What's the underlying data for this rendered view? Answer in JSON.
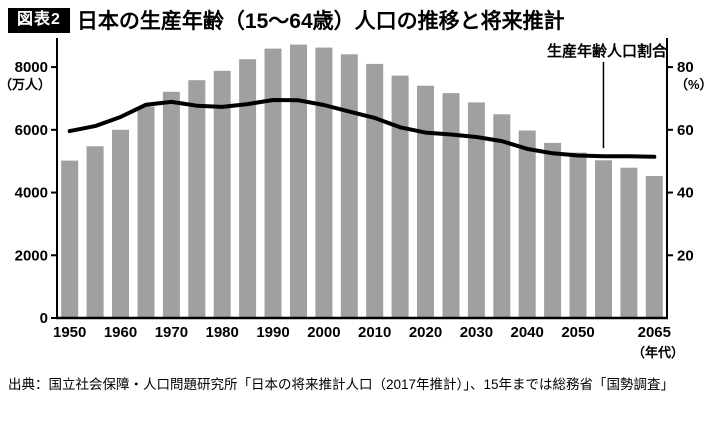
{
  "header": {
    "badge": "図表2",
    "title": "日本の生産年齢（15〜64歳）人口の推移と将来推計"
  },
  "chart_data": {
    "type": "bar+line",
    "title": "日本の生産年齢（15〜64歳）人口の推移と将来推計",
    "categories": [
      1950,
      1955,
      1960,
      1965,
      1970,
      1975,
      1980,
      1985,
      1990,
      1995,
      2000,
      2005,
      2010,
      2015,
      2020,
      2025,
      2030,
      2035,
      2040,
      2045,
      2050,
      2055,
      2060,
      2065
    ],
    "series": [
      {
        "name": "生産年齢人口",
        "type": "bar",
        "unit": "万人",
        "values": [
          5017,
          5473,
          6000,
          6744,
          7212,
          7581,
          7883,
          8251,
          8590,
          8716,
          8622,
          8409,
          8103,
          7728,
          7406,
          7170,
          6875,
          6494,
          5978,
          5584,
          5275,
          5028,
          4793,
          4529
        ]
      },
      {
        "name": "生産年齢人口割合",
        "type": "line",
        "unit": "%",
        "values": [
          59.6,
          61.2,
          64.1,
          68.0,
          68.9,
          67.7,
          67.3,
          68.2,
          69.5,
          69.4,
          67.9,
          65.8,
          63.8,
          60.8,
          59.1,
          58.5,
          57.7,
          56.4,
          53.9,
          52.5,
          51.8,
          51.6,
          51.6,
          51.4
        ]
      }
    ],
    "left_axis": {
      "unit_label": "（万人）",
      "ticks": [
        0,
        2000,
        4000,
        6000,
        8000
      ],
      "max": 8800
    },
    "right_axis": {
      "unit_label": "（%）",
      "ticks": [
        20,
        40,
        60,
        80
      ],
      "max": 88
    },
    "x_axis": {
      "unit_label": "（年代）",
      "tick_values": [
        1950,
        1960,
        1970,
        1980,
        1990,
        2000,
        2010,
        2020,
        2030,
        2040,
        2050,
        2065
      ]
    },
    "annotation": {
      "label": "生産年齢人口割合",
      "pointer_year": 2055
    },
    "legend": "none",
    "grid": false,
    "bar_color": "#a0a0a0",
    "line_color": "#000000"
  },
  "footer": {
    "source": "出典：国立社会保障・人口問題研究所「日本の将来推計人口（2017年推計）」、15年までは総務省「国勢調査」"
  }
}
